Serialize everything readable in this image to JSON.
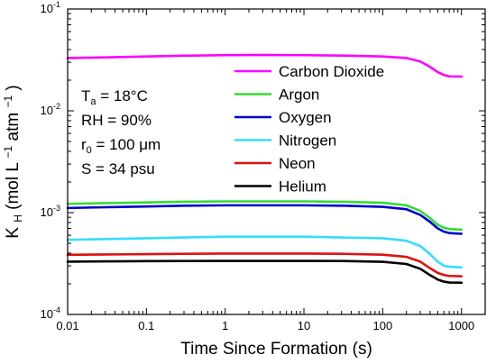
{
  "chart_data": {
    "type": "line",
    "xlabel": "Time Since Formation (s)",
    "ylabel_main": "K",
    "ylabel_sub": "H",
    "ylabel_units": "(mol L",
    "ylabel_exp1": "−1",
    "ylabel_mid": " atm",
    "ylabel_exp2": "−1",
    "ylabel_close": ")",
    "x_scale": "log",
    "y_scale": "log",
    "xlim": [
      0.01,
      2000
    ],
    "ylim": [
      0.0001,
      0.1
    ],
    "x_ticks": [
      {
        "value": 0.01,
        "label": "0.01"
      },
      {
        "value": 0.1,
        "label": "0.1"
      },
      {
        "value": 1,
        "label": "1"
      },
      {
        "value": 10,
        "label": "10"
      },
      {
        "value": 100,
        "label": "100"
      },
      {
        "value": 1000,
        "label": "1000"
      }
    ],
    "y_ticks": [
      {
        "value": 0.0001,
        "base": "10",
        "exp": "-4"
      },
      {
        "value": 0.001,
        "base": "10",
        "exp": "-3"
      },
      {
        "value": 0.01,
        "base": "10",
        "exp": "-2"
      },
      {
        "value": 0.1,
        "base": "10",
        "exp": "-1"
      }
    ],
    "conditions": [
      {
        "main": "T",
        "sub": "a",
        "rest": " = 18°C"
      },
      {
        "main": "RH = 90%",
        "sub": "",
        "rest": ""
      },
      {
        "main": "r",
        "sub": "0",
        "rest": " = 100 μm"
      },
      {
        "main": "S = 34 psu",
        "sub": "",
        "rest": ""
      }
    ],
    "legend_position": "top-right",
    "series": [
      {
        "name": "Carbon Dioxide",
        "color": "#ff00ff",
        "points": [
          [
            0.01,
            0.033
          ],
          [
            0.03,
            0.0335
          ],
          [
            0.1,
            0.0342
          ],
          [
            0.3,
            0.0348
          ],
          [
            1,
            0.0352
          ],
          [
            3,
            0.0353
          ],
          [
            10,
            0.0352
          ],
          [
            30,
            0.0349
          ],
          [
            100,
            0.0342
          ],
          [
            200,
            0.033
          ],
          [
            300,
            0.0305
          ],
          [
            400,
            0.027
          ],
          [
            500,
            0.024
          ],
          [
            600,
            0.0225
          ],
          [
            700,
            0.0218
          ],
          [
            1000,
            0.0217
          ]
        ]
      },
      {
        "name": "Argon",
        "color": "#33dd33",
        "points": [
          [
            0.01,
            0.00122
          ],
          [
            0.03,
            0.00124
          ],
          [
            0.1,
            0.00126
          ],
          [
            0.3,
            0.00128
          ],
          [
            1,
            0.00129
          ],
          [
            3,
            0.00129
          ],
          [
            10,
            0.00129
          ],
          [
            30,
            0.00128
          ],
          [
            100,
            0.00125
          ],
          [
            200,
            0.00118
          ],
          [
            300,
            0.00104
          ],
          [
            400,
            0.00088
          ],
          [
            500,
            0.00076
          ],
          [
            600,
            0.00071
          ],
          [
            700,
            0.00069
          ],
          [
            1000,
            0.00068
          ]
        ]
      },
      {
        "name": "Oxygen",
        "color": "#0000cc",
        "points": [
          [
            0.01,
            0.00111
          ],
          [
            0.03,
            0.00113
          ],
          [
            0.1,
            0.00115
          ],
          [
            0.3,
            0.00117
          ],
          [
            1,
            0.00118
          ],
          [
            3,
            0.00118
          ],
          [
            10,
            0.00118
          ],
          [
            30,
            0.00117
          ],
          [
            100,
            0.00114
          ],
          [
            200,
            0.00108
          ],
          [
            300,
            0.00095
          ],
          [
            400,
            0.00081
          ],
          [
            500,
            0.0007
          ],
          [
            600,
            0.00065
          ],
          [
            700,
            0.00063
          ],
          [
            1000,
            0.00062
          ]
        ]
      },
      {
        "name": "Nitrogen",
        "color": "#33ddff",
        "points": [
          [
            0.01,
            0.00054
          ],
          [
            0.03,
            0.00055
          ],
          [
            0.1,
            0.00056
          ],
          [
            0.3,
            0.00057
          ],
          [
            1,
            0.00058
          ],
          [
            3,
            0.00058
          ],
          [
            10,
            0.00058
          ],
          [
            30,
            0.00057
          ],
          [
            100,
            0.00056
          ],
          [
            200,
            0.00053
          ],
          [
            300,
            0.00047
          ],
          [
            400,
            0.00039
          ],
          [
            500,
            0.00033
          ],
          [
            600,
            0.0003
          ],
          [
            700,
            0.000295
          ],
          [
            1000,
            0.00029
          ]
        ]
      },
      {
        "name": "Neon",
        "color": "#dd1111",
        "points": [
          [
            0.01,
            0.000385
          ],
          [
            0.03,
            0.000388
          ],
          [
            0.1,
            0.000391
          ],
          [
            0.3,
            0.000394
          ],
          [
            1,
            0.000396
          ],
          [
            3,
            0.000396
          ],
          [
            10,
            0.000396
          ],
          [
            30,
            0.000394
          ],
          [
            100,
            0.000386
          ],
          [
            200,
            0.000368
          ],
          [
            300,
            0.00033
          ],
          [
            400,
            0.000284
          ],
          [
            500,
            0.000256
          ],
          [
            600,
            0.000244
          ],
          [
            700,
            0.000239
          ],
          [
            1000,
            0.000237
          ]
        ]
      },
      {
        "name": "Helium",
        "color": "#000000",
        "points": [
          [
            0.01,
            0.00033
          ],
          [
            0.03,
            0.000332
          ],
          [
            0.1,
            0.000334
          ],
          [
            0.3,
            0.000335
          ],
          [
            1,
            0.000336
          ],
          [
            3,
            0.000336
          ],
          [
            10,
            0.000336
          ],
          [
            30,
            0.000335
          ],
          [
            100,
            0.000329
          ],
          [
            200,
            0.000313
          ],
          [
            300,
            0.000281
          ],
          [
            400,
            0.000243
          ],
          [
            500,
            0.00022
          ],
          [
            600,
            0.00021
          ],
          [
            700,
            0.000206
          ],
          [
            1000,
            0.000205
          ]
        ]
      }
    ]
  }
}
